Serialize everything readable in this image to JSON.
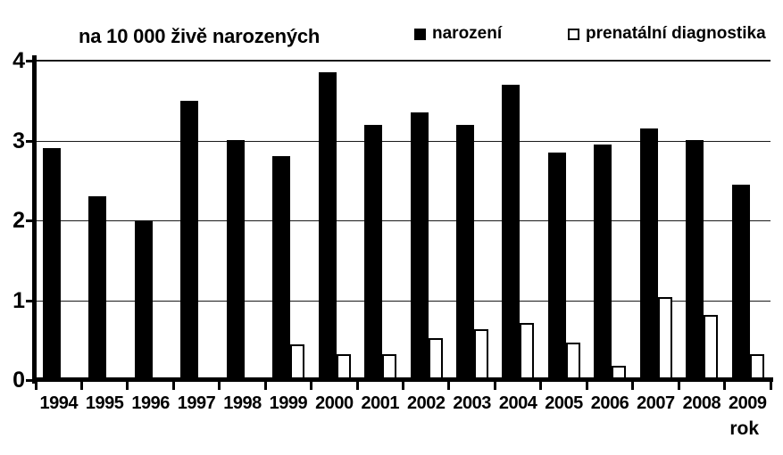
{
  "chart_data": {
    "type": "bar",
    "title": "na 10 000 živě narozených",
    "xlabel": "rok",
    "ylabel": "",
    "ylim": [
      0,
      4
    ],
    "yticks": [
      0,
      1,
      2,
      3,
      4
    ],
    "grid": true,
    "legend_position": "top",
    "categories": [
      "1994",
      "1995",
      "1996",
      "1997",
      "1998",
      "1999",
      "2000",
      "2001",
      "2002",
      "2003",
      "2004",
      "2005",
      "2006",
      "2007",
      "2008",
      "2009"
    ],
    "series": [
      {
        "name": "narození",
        "style": "filled",
        "color": "#000000",
        "values": [
          2.9,
          2.3,
          2.0,
          3.5,
          3.0,
          2.8,
          3.85,
          3.2,
          3.35,
          3.2,
          3.7,
          2.85,
          2.95,
          3.15,
          3.0,
          2.45
        ]
      },
      {
        "name": "prenatální diagnostika",
        "style": "outline",
        "color": "#ffffff",
        "border_color": "#000000",
        "values": [
          0,
          0,
          0,
          0,
          0,
          0.45,
          0.32,
          0.32,
          0.53,
          0.64,
          0.72,
          0.47,
          0.18,
          1.04,
          0.82,
          0.32
        ]
      }
    ]
  },
  "colors": {
    "background": "#ffffff",
    "bar_filled": "#000000",
    "bar_outline_fill": "#ffffff",
    "axis": "#000000",
    "grid": "#1a1a1a"
  }
}
